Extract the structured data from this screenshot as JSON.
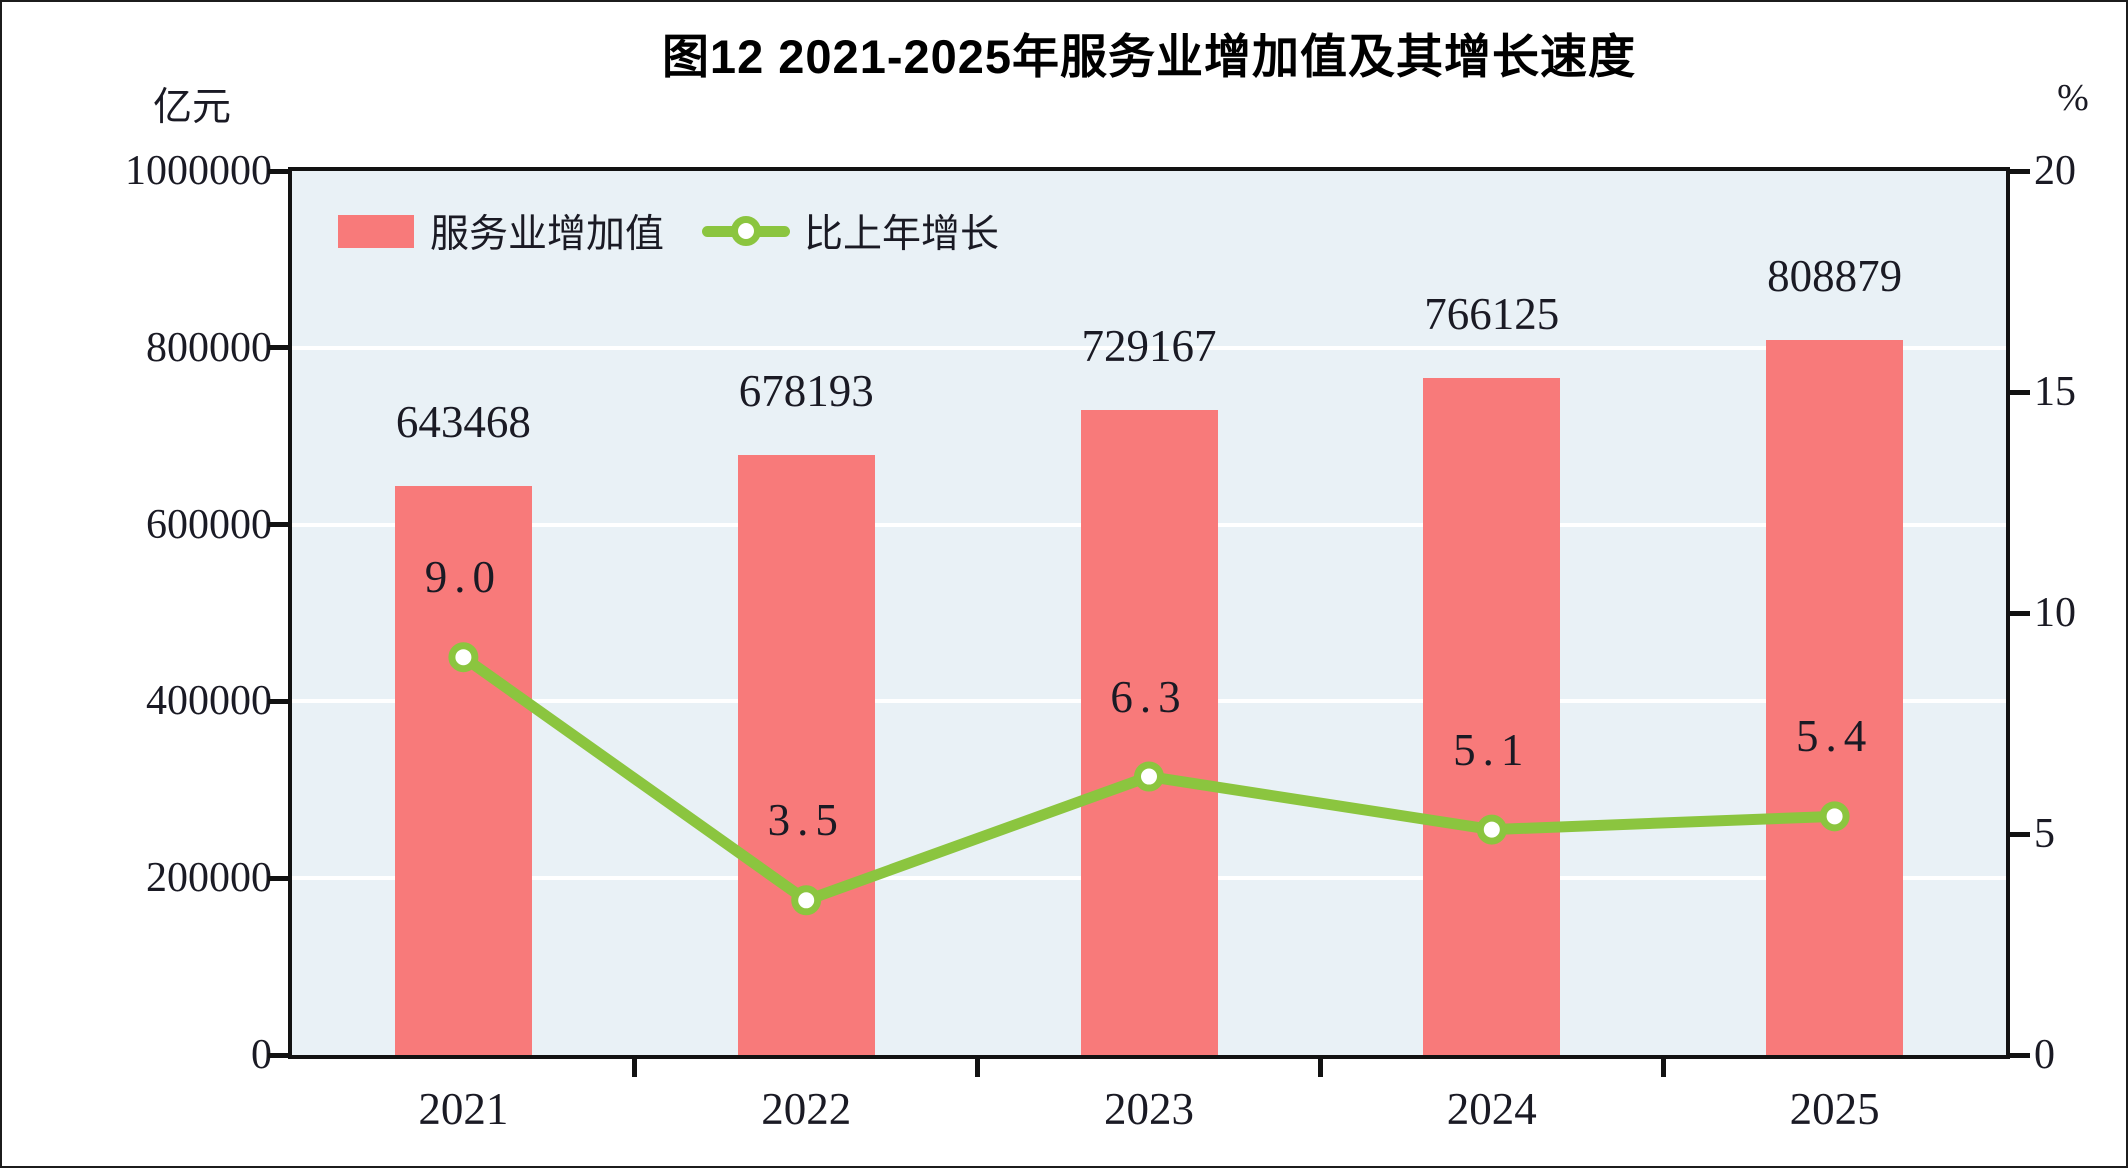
{
  "chart_data": {
    "type": "combo",
    "title": "图12  2021-2025年服务业增加值及其增长速度",
    "categories": [
      "2021",
      "2022",
      "2023",
      "2024",
      "2025"
    ],
    "series": [
      {
        "name": "服务业增加值",
        "type": "bar",
        "axis": "left",
        "color": "#F87A7A",
        "values": [
          643468,
          678193,
          729167,
          766125,
          808879
        ],
        "labels": [
          "643468",
          "678193",
          "729167",
          "766125",
          "808879"
        ]
      },
      {
        "name": "比上年增长",
        "type": "line",
        "axis": "right",
        "color": "#8BC53F",
        "marker": "circle-open",
        "values": [
          9.0,
          3.5,
          6.3,
          5.1,
          5.4
        ],
        "labels": [
          "9.0",
          "3.5",
          "6.3",
          "5.1",
          "5.4"
        ]
      }
    ],
    "y_left": {
      "unit": "亿元",
      "min": 0,
      "max": 1000000,
      "tick_step": 200000,
      "tick_labels": [
        "0",
        "200000",
        "400000",
        "600000",
        "800000",
        "1000000"
      ]
    },
    "y_right": {
      "unit": "%",
      "min": 0,
      "max": 20,
      "tick_step": 5,
      "tick_labels": [
        "0",
        "5",
        "10",
        "15",
        "20"
      ]
    },
    "grid": {
      "horizontal": true,
      "color": "#FFFFFF"
    },
    "plot_bg": "#E9F1F6",
    "legend_position": "top-left-inside"
  }
}
